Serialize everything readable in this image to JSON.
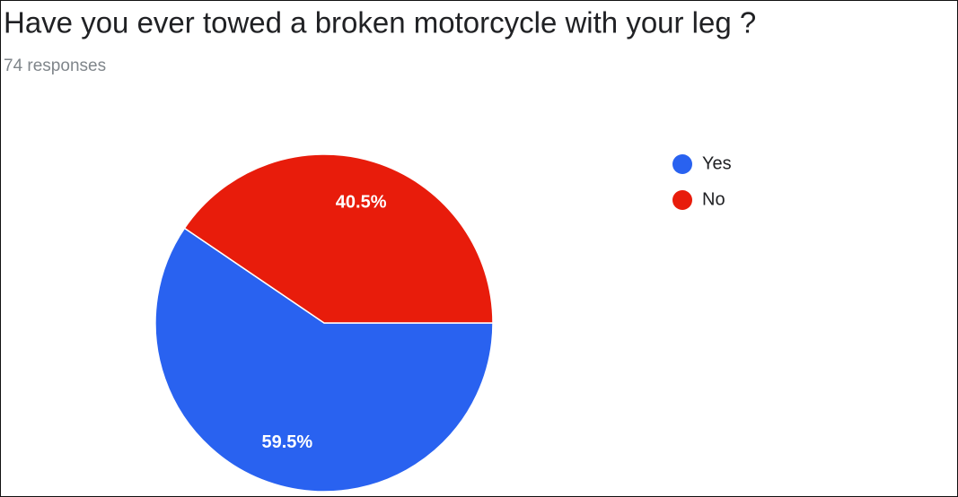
{
  "chart_data": {
    "type": "pie",
    "title": "Have you ever towed a broken motorcycle with your leg ?",
    "subtitle": "74 responses",
    "categories": [
      "Yes",
      "No"
    ],
    "values": [
      59.5,
      40.5
    ],
    "value_labels": [
      "59.5%",
      "40.5%"
    ],
    "colors": [
      "#2962f0",
      "#e81c0b"
    ],
    "legend": "right"
  }
}
